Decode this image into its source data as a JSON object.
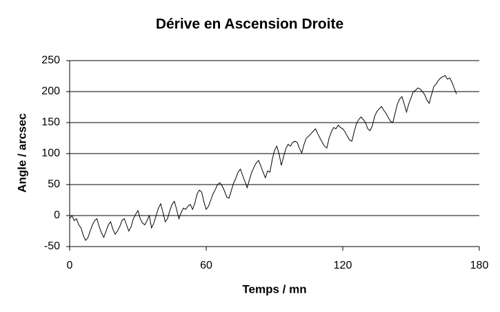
{
  "chart_data": {
    "type": "line",
    "title": "Dérive en Ascension Droite",
    "xlabel": "Temps / mn",
    "ylabel": "Angle / arcsec",
    "xlim": [
      0,
      180
    ],
    "xticks": [
      0,
      60,
      120,
      180
    ],
    "ylim": [
      -50,
      250
    ],
    "yticks": [
      -50,
      0,
      50,
      100,
      150,
      200,
      250
    ],
    "grid": true,
    "series": [
      {
        "color": "#000000",
        "x": [
          0,
          1,
          2,
          3,
          4,
          5,
          6,
          7,
          8,
          9,
          10,
          11,
          12,
          13,
          14,
          15,
          16,
          17,
          18,
          19,
          20,
          21,
          22,
          23,
          24,
          25,
          26,
          27,
          28,
          29,
          30,
          31,
          32,
          33,
          34,
          35,
          36,
          37,
          38,
          39,
          40,
          41,
          42,
          43,
          44,
          45,
          46,
          47,
          48,
          49,
          50,
          51,
          52,
          53,
          54,
          55,
          56,
          57,
          58,
          59,
          60,
          61,
          62,
          63,
          64,
          65,
          66,
          67,
          68,
          69,
          70,
          71,
          72,
          73,
          74,
          75,
          76,
          77,
          78,
          79,
          80,
          81,
          82,
          83,
          84,
          85,
          86,
          87,
          88,
          89,
          90,
          91,
          92,
          93,
          94,
          95,
          96,
          97,
          98,
          99,
          100,
          101,
          102,
          103,
          104,
          105,
          106,
          107,
          108,
          109,
          110,
          111,
          112,
          113,
          114,
          115,
          116,
          117,
          118,
          119,
          120,
          121,
          122,
          123,
          124,
          125,
          126,
          127,
          128,
          129,
          130,
          131,
          132,
          133,
          134,
          135,
          136,
          137,
          138,
          139,
          140,
          141,
          142,
          143,
          144,
          145,
          146,
          147,
          148,
          149,
          150,
          151,
          152,
          153,
          154,
          155,
          156,
          157,
          158,
          159,
          160,
          161,
          162,
          163,
          164,
          165,
          166,
          167,
          168,
          169,
          170
        ],
        "values": [
          -5,
          0,
          -8,
          -5,
          -15,
          -20,
          -32,
          -40,
          -36,
          -25,
          -15,
          -8,
          -5,
          -18,
          -28,
          -35,
          -25,
          -15,
          -10,
          -22,
          -30,
          -25,
          -18,
          -8,
          -5,
          -15,
          -25,
          -18,
          -5,
          2,
          8,
          -5,
          -12,
          -15,
          -8,
          0,
          -20,
          -12,
          0,
          12,
          19,
          5,
          -10,
          -5,
          8,
          18,
          23,
          10,
          -5,
          5,
          12,
          10,
          15,
          18,
          10,
          20,
          35,
          41,
          38,
          22,
          10,
          15,
          25,
          35,
          42,
          50,
          53,
          48,
          40,
          30,
          28,
          40,
          52,
          60,
          70,
          75,
          65,
          55,
          45,
          58,
          70,
          78,
          85,
          89,
          80,
          70,
          61,
          72,
          70,
          90,
          105,
          112,
          100,
          81,
          95,
          108,
          115,
          112,
          118,
          120,
          118,
          108,
          101,
          115,
          125,
          128,
          132,
          136,
          140,
          132,
          125,
          118,
          112,
          109,
          125,
          135,
          142,
          140,
          146,
          142,
          140,
          135,
          128,
          122,
          120,
          135,
          148,
          155,
          159,
          155,
          150,
          140,
          137,
          145,
          160,
          168,
          172,
          176,
          170,
          165,
          158,
          152,
          150,
          165,
          180,
          188,
          192,
          180,
          167,
          180,
          190,
          200,
          202,
          206,
          204,
          200,
          195,
          186,
          181,
          195,
          208,
          212,
          218,
          222,
          224,
          226,
          220,
          222,
          215,
          205,
          196
        ]
      }
    ]
  }
}
